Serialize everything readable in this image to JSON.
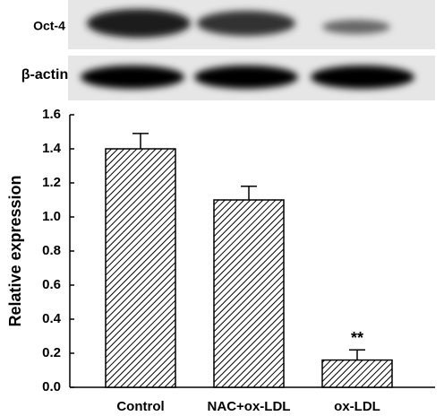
{
  "chart_data": {
    "type": "bar",
    "blot_labels": [
      "Oct-4",
      "β-actin"
    ],
    "y_label": "Relative expression",
    "categories": [
      "Control",
      "NAC+ox-LDL",
      "ox-LDL"
    ],
    "values": [
      1.4,
      1.1,
      0.16
    ],
    "errors": [
      0.09,
      0.08,
      0.06
    ],
    "annotation": "**",
    "color": "#000000",
    "ylim": [
      0,
      1.6
    ],
    "yticks": [
      {
        "value": 0,
        "label": "0.0"
      },
      0.2,
      0.4,
      0.6,
      0.8,
      {
        "value": 1,
        "label": "1.0"
      },
      1.2,
      1.4,
      1.6
    ],
    "grid": false
  }
}
